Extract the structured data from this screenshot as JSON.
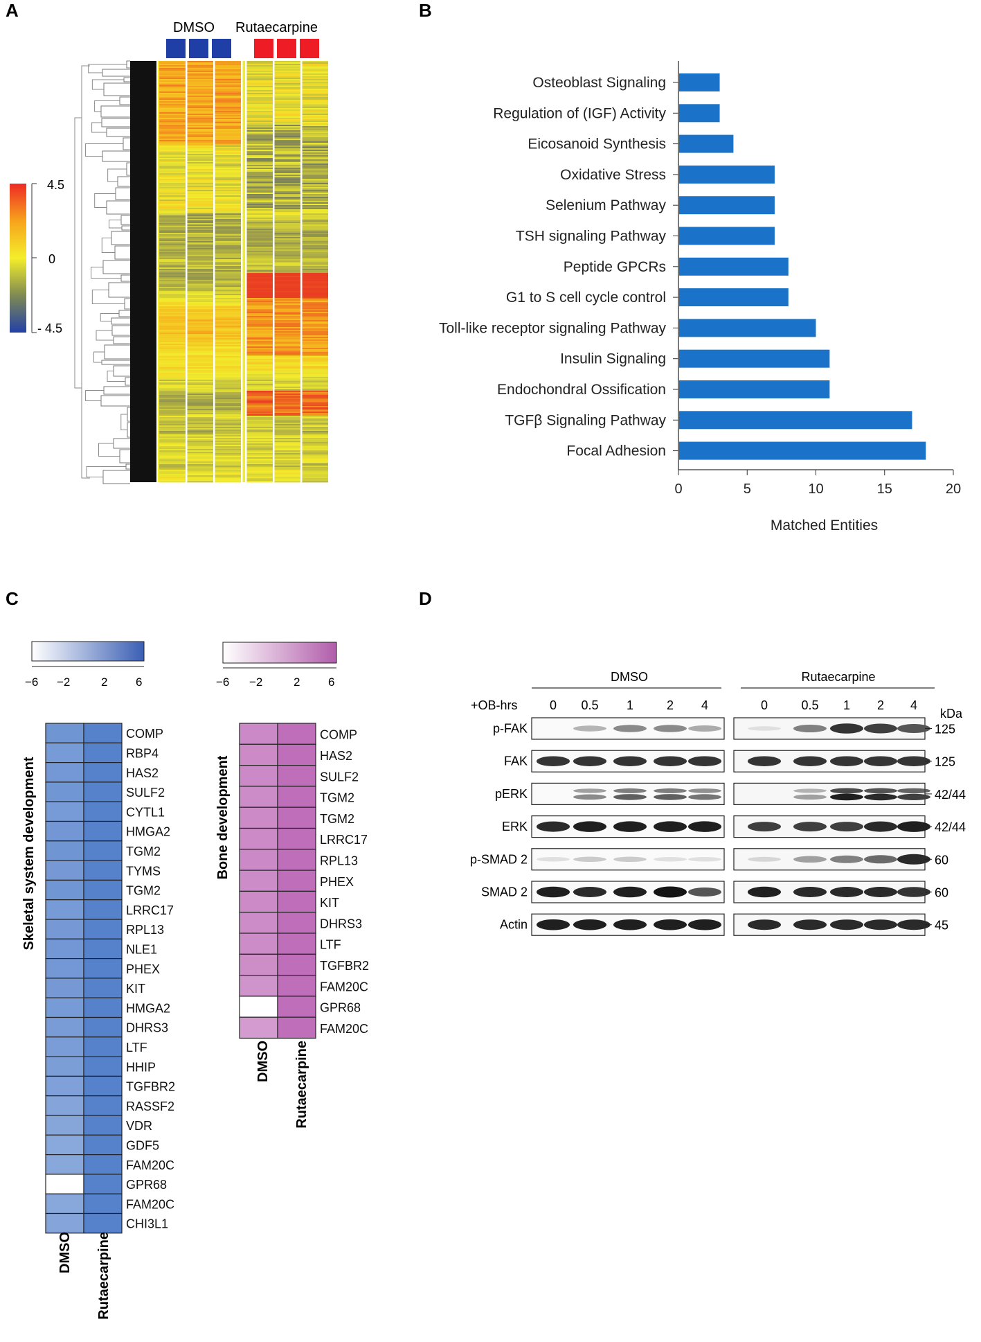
{
  "panels": {
    "A": {
      "letter": "A",
      "group_labels": [
        "DMSO",
        "Rutaecarpine"
      ],
      "colors": {
        "dmso": "#1f3fa6",
        "rutaecarpine": "#ee1c24"
      },
      "scale": {
        "max_label": "4.5",
        "mid_label": "0",
        "min_label": "- 4.5"
      }
    },
    "B": {
      "letter": "B",
      "chart_data": {
        "type": "bar",
        "orientation": "horizontal",
        "categories": [
          "Osteoblast Signaling",
          "Regulation of (IGF) Activity",
          "Eicosanoid Synthesis",
          "Oxidative Stress",
          "Selenium Pathway",
          "TSH signaling Pathway",
          "Peptide GPCRs",
          "G1 to S cell cycle control",
          "Toll-like receptor signaling Pathway",
          "Insulin Signaling",
          "Endochondral Ossification",
          "TGFβ  Signaling Pathway",
          "Focal Adhesion"
        ],
        "values": [
          3,
          3,
          4,
          7,
          7,
          7,
          8,
          8,
          10,
          11,
          11,
          17,
          18
        ],
        "xlabel": "Matched Entities",
        "xlim": [
          0,
          20
        ],
        "xticks": [
          "0",
          "5",
          "10",
          "15",
          "20"
        ],
        "bar_color": "#1a73c8"
      }
    },
    "C": {
      "letter": "C",
      "scale_ticks": [
        "−6",
        "−2",
        "2",
        "6"
      ],
      "skeletal": {
        "title": "Skeletal system development",
        "genes": [
          "COMP",
          "RBP4",
          "HAS2",
          "SULF2",
          "CYTL1",
          "HMGA2",
          "TGM2",
          "TYMS",
          "TGM2",
          "LRRC17",
          "RPL13",
          "NLE1",
          "PHEX",
          "KIT",
          "HMGA2",
          "DHRS3",
          "LTF",
          "HHIP",
          "TGFBR2",
          "RASSF2",
          "VDR",
          "GDF5",
          "FAM20C",
          "GPR68",
          "FAM20C",
          "CHI3L1"
        ],
        "dmso_values": [
          3.5,
          3.0,
          3.2,
          3.4,
          3.0,
          3.3,
          3.5,
          3.1,
          3.4,
          3.0,
          3.1,
          3.3,
          3.2,
          3.1,
          3.0,
          2.9,
          2.8,
          2.7,
          2.5,
          2.1,
          2.0,
          1.8,
          1.9,
          -6,
          1.9,
          2.1
        ],
        "rut_values": [
          5.2,
          5.2,
          5.2,
          5.2,
          5.2,
          5.2,
          5.2,
          5.2,
          5.2,
          5.2,
          5.2,
          5.2,
          5.2,
          5.2,
          5.2,
          5.2,
          5.2,
          5.2,
          5.2,
          5.2,
          5.2,
          5.2,
          5.2,
          5.2,
          5.2,
          5.2
        ],
        "columns": [
          "DMSO",
          "Rutaecarpine"
        ],
        "color": "#4a79c8"
      },
      "bone": {
        "title": "Bone development",
        "genes": [
          "COMP",
          "HAS2",
          "SULF2",
          "TGM2",
          "TGM2",
          "LRRC17",
          "RPL13",
          "PHEX",
          "KIT",
          "DHRS3",
          "LTF",
          "TGFBR2",
          "FAM20C",
          "GPR68",
          "FAM20C"
        ],
        "dmso_values": [
          2.8,
          2.7,
          2.8,
          2.6,
          2.7,
          2.7,
          2.8,
          2.6,
          2.7,
          2.6,
          2.6,
          2.5,
          2.0,
          -6,
          1.5
        ],
        "rut_values": [
          4.8,
          4.8,
          4.8,
          4.8,
          4.8,
          4.8,
          4.8,
          4.8,
          4.8,
          4.8,
          4.8,
          4.8,
          4.8,
          4.8,
          4.8
        ],
        "columns": [
          "DMSO",
          "Rutaecarpine"
        ],
        "color": "#b85fb2"
      }
    },
    "D": {
      "letter": "D",
      "groups": [
        "DMSO",
        "Rutaecarpine"
      ],
      "row_label": "+OB-hrs",
      "timepoints": [
        "0",
        "0.5",
        "1",
        "2",
        "4"
      ],
      "kda_label": "kDa",
      "blots": [
        {
          "protein": "p-FAK",
          "kda": "125",
          "dmso": [
            0.0,
            0.25,
            0.45,
            0.45,
            0.3
          ],
          "rut": [
            0.05,
            0.5,
            0.85,
            0.8,
            0.7
          ]
        },
        {
          "protein": "FAK",
          "kda": "125",
          "dmso": [
            0.85,
            0.85,
            0.85,
            0.85,
            0.85
          ],
          "rut": [
            0.85,
            0.85,
            0.85,
            0.85,
            0.85
          ]
        },
        {
          "protein": "pERK",
          "kda": "42/44",
          "dmso": [
            0.0,
            0.45,
            0.65,
            0.65,
            0.55
          ],
          "rut": [
            0.0,
            0.35,
            0.95,
            0.9,
            0.8
          ]
        },
        {
          "protein": "ERK",
          "kda": "42/44",
          "dmso": [
            0.9,
            0.95,
            0.95,
            0.95,
            0.95
          ],
          "rut": [
            0.8,
            0.8,
            0.8,
            0.9,
            0.95
          ]
        },
        {
          "protein": "p-SMAD 2",
          "kda": "60",
          "dmso": [
            0.05,
            0.15,
            0.15,
            0.05,
            0.05
          ],
          "rut": [
            0.1,
            0.35,
            0.5,
            0.6,
            0.9
          ]
        },
        {
          "protein": "SMAD 2",
          "kda": "60",
          "dmso": [
            0.95,
            0.9,
            0.95,
            1.0,
            0.7
          ],
          "rut": [
            0.95,
            0.9,
            0.9,
            0.9,
            0.85
          ]
        },
        {
          "protein": "Actin",
          "kda": "45",
          "dmso": [
            0.95,
            0.95,
            0.95,
            0.95,
            0.95
          ],
          "rut": [
            0.9,
            0.9,
            0.9,
            0.9,
            0.9
          ]
        }
      ]
    }
  }
}
